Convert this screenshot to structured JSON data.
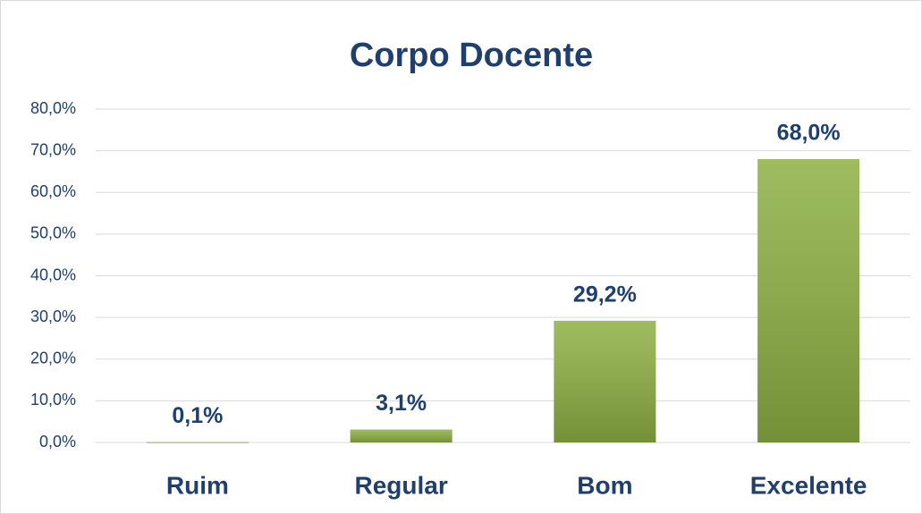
{
  "chart_data": {
    "type": "bar",
    "title": "Corpo Docente",
    "categories": [
      "Ruim",
      "Regular",
      "Bom",
      "Excelente"
    ],
    "values": [
      0.1,
      3.1,
      29.2,
      68.0
    ],
    "value_labels": [
      "0,1%",
      "3,1%",
      "29,2%",
      "68,0%"
    ],
    "color": "#8db043",
    "ylim": [
      0,
      80
    ],
    "yticks": [
      {
        "value": 0,
        "label": "0,0%"
      },
      {
        "value": 10,
        "label": "10,0%"
      },
      {
        "value": 20,
        "label": "20,0%"
      },
      {
        "value": 30,
        "label": "30,0%"
      },
      {
        "value": 40,
        "label": "40,0%"
      },
      {
        "value": 50,
        "label": "50,0%"
      },
      {
        "value": 60,
        "label": "60,0%"
      },
      {
        "value": 70,
        "label": "70,0%"
      },
      {
        "value": 80,
        "label": "80,0%"
      }
    ],
    "grid": true
  }
}
